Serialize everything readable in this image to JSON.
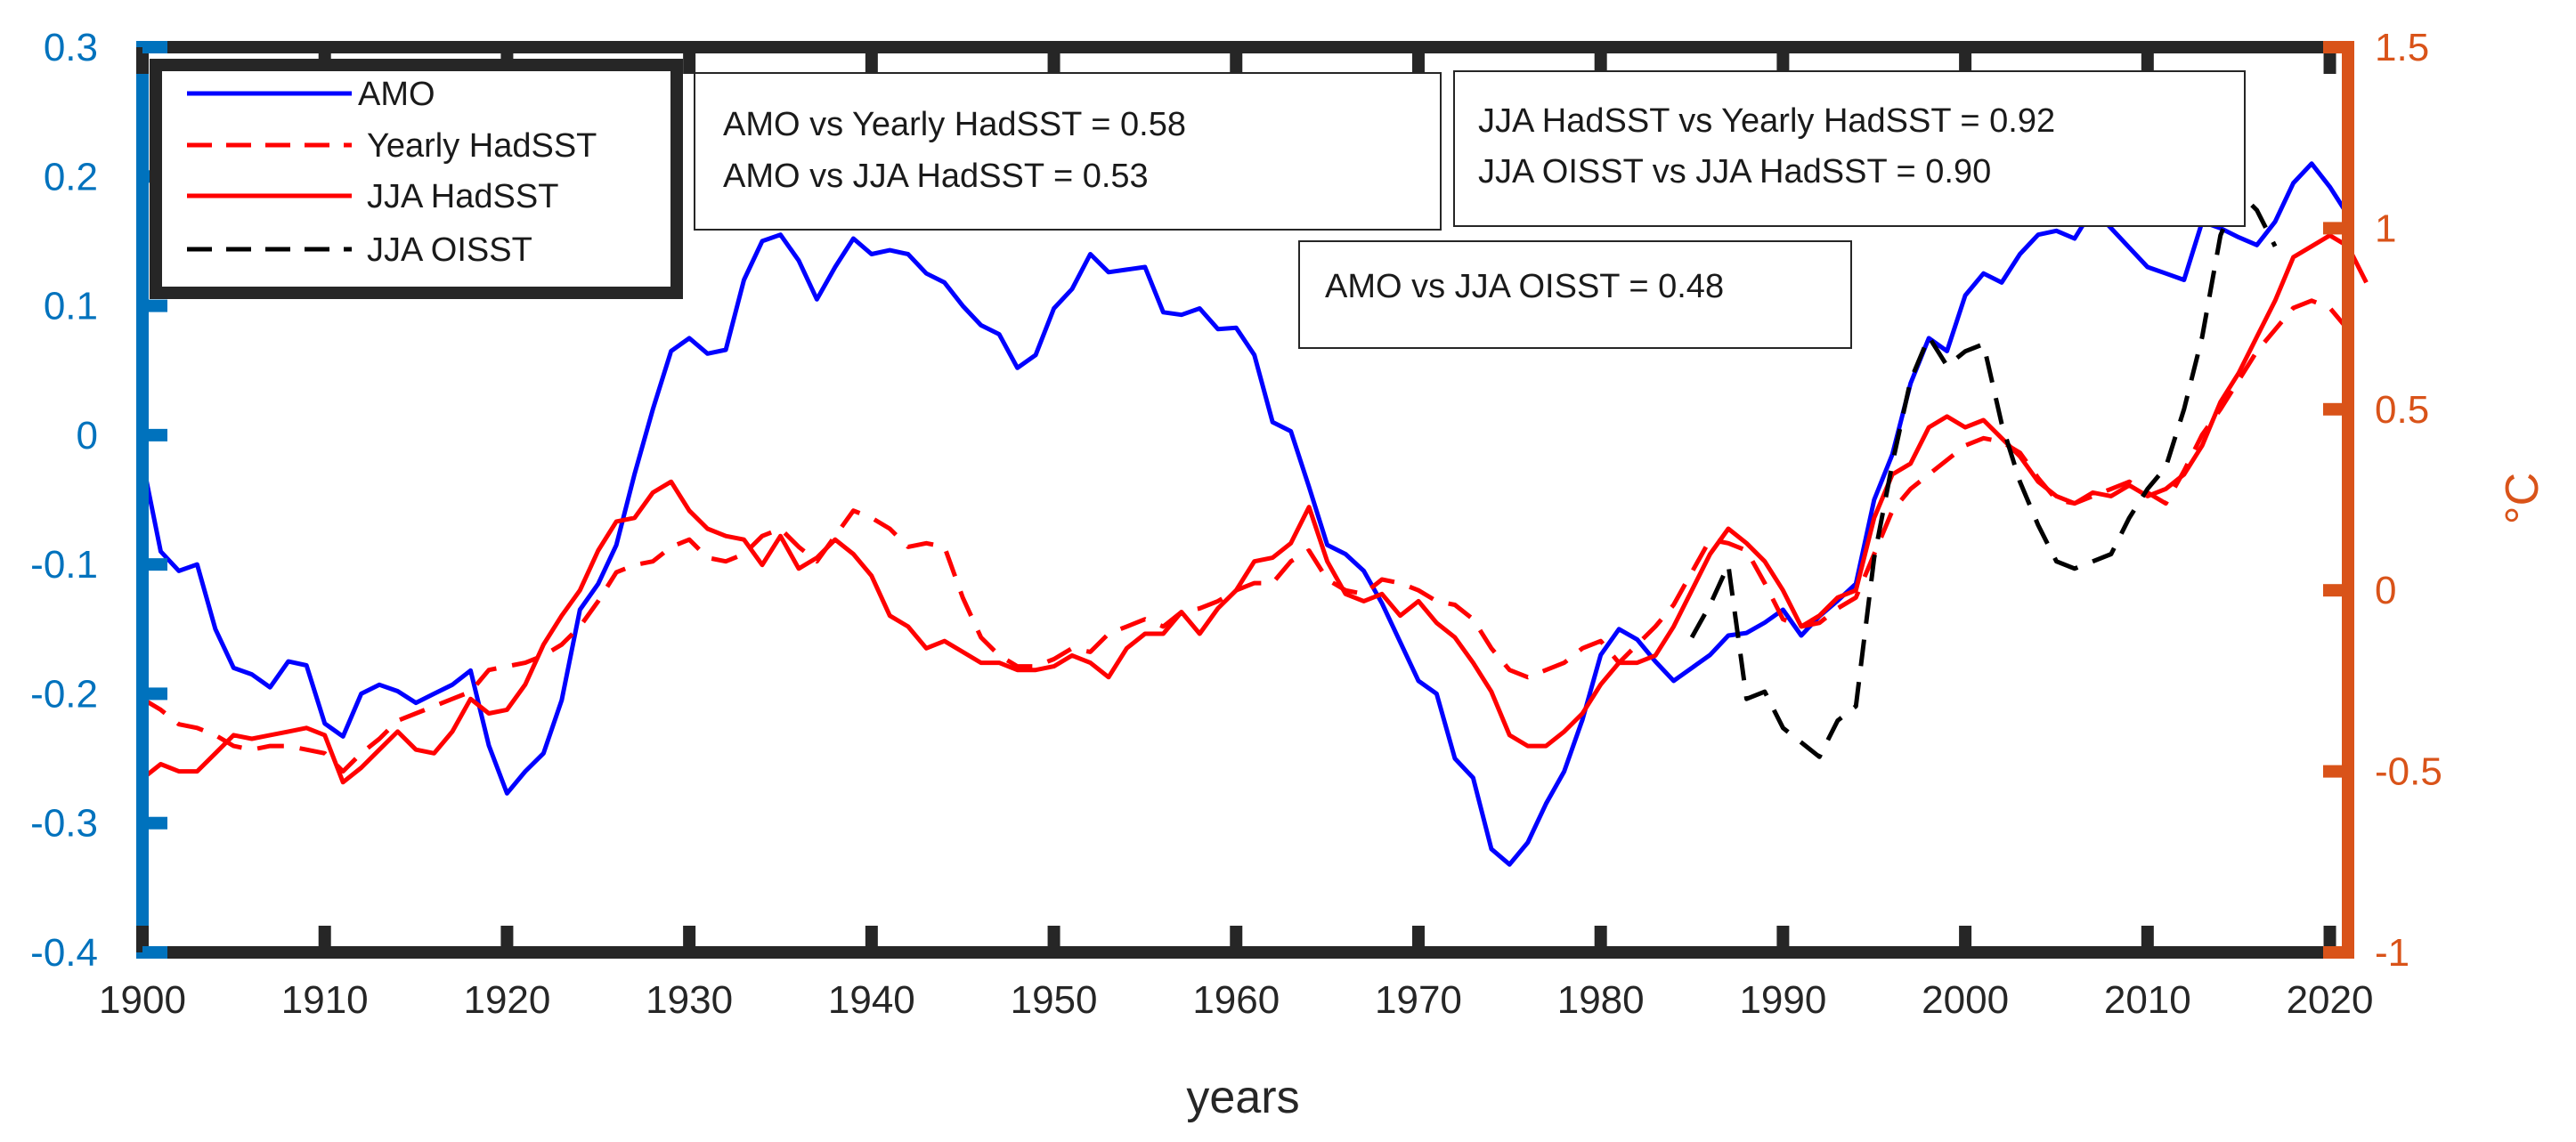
{
  "chart_data": {
    "type": "line",
    "title": "",
    "xlabel": "years",
    "ylabel_left": "",
    "ylabel_right": "°C",
    "xlim": [
      1900,
      2021
    ],
    "ylim_left": [
      -0.4,
      0.3
    ],
    "ylim_right": [
      -1,
      1.5
    ],
    "xticks": [
      "1900",
      "1910",
      "1920",
      "1930",
      "1940",
      "1950",
      "1960",
      "1970",
      "1980",
      "1990",
      "2000",
      "2010",
      "2020"
    ],
    "yticks_left": [
      "-0.4",
      "-0.3",
      "-0.2",
      "-0.1",
      "0",
      "0.1",
      "0.2",
      "0.3"
    ],
    "yticks_right": [
      "-1",
      "-0.5",
      "0",
      "0.5",
      "1",
      "1.5"
    ],
    "colors": {
      "left_axis": "#0072BD",
      "right_axis": "#D95319",
      "amo": "#0000FF",
      "had": "#FF0000",
      "oi": "#000000",
      "frame": "#262626"
    },
    "legend": [
      {
        "label": "AMO",
        "color": "#0000FF",
        "dash": "solid"
      },
      {
        "label": "Yearly HadSST",
        "color": "#FF0000",
        "dash": "dashed"
      },
      {
        "label": "JJA HadSST",
        "color": "#FF0000",
        "dash": "solid"
      },
      {
        "label": "JJA OISST",
        "color": "#000000",
        "dash": "dashed"
      }
    ],
    "annotations": [
      {
        "lines": [
          "AMO vs Yearly HadSST = 0.58",
          "AMO vs JJA HadSST = 0.53"
        ]
      },
      {
        "lines": [
          "JJA HadSST vs Yearly HadSST = 0.92",
          "JJA OISST vs JJA HadSST = 0.90"
        ]
      },
      {
        "lines": [
          "AMO vs JJA OISST = 0.48"
        ]
      }
    ],
    "series": [
      {
        "name": "AMO",
        "axis": "left",
        "color": "#0000FF",
        "dash": "solid",
        "x_start": 1900,
        "values": [
          -0.02,
          -0.09,
          -0.105,
          -0.1,
          -0.15,
          -0.18,
          -0.185,
          -0.195,
          -0.175,
          -0.178,
          -0.223,
          -0.233,
          -0.2,
          -0.193,
          -0.198,
          -0.207,
          -0.2,
          -0.193,
          -0.182,
          -0.24,
          -0.277,
          -0.26,
          -0.246,
          -0.205,
          -0.135,
          -0.115,
          -0.085,
          -0.03,
          0.02,
          0.065,
          0.075,
          0.063,
          0.066,
          0.12,
          0.15,
          0.155,
          0.135,
          0.105,
          0.13,
          0.152,
          0.14,
          0.143,
          0.14,
          0.125,
          0.118,
          0.1,
          0.085,
          0.078,
          0.052,
          0.062,
          0.098,
          0.113,
          0.14,
          0.126,
          0.128,
          0.13,
          0.095,
          0.093,
          0.098,
          0.082,
          0.083,
          0.062,
          0.01,
          0.003,
          -0.04,
          -0.085,
          -0.092,
          -0.105,
          -0.13,
          -0.16,
          -0.19,
          -0.2,
          -0.25,
          -0.265,
          -0.32,
          -0.332,
          -0.315,
          -0.285,
          -0.26,
          -0.22,
          -0.17,
          -0.15,
          -0.158,
          -0.175,
          -0.19,
          -0.18,
          -0.17,
          -0.155,
          -0.153,
          -0.145,
          -0.135,
          -0.155,
          -0.14,
          -0.128,
          -0.115,
          -0.05,
          -0.015,
          0.04,
          0.075,
          0.065,
          0.108,
          0.125,
          0.118,
          0.14,
          0.155,
          0.158,
          0.152,
          0.175,
          0.16,
          0.145,
          0.13,
          0.125,
          0.12,
          0.165,
          0.16,
          0.153,
          0.147,
          0.165,
          0.195,
          0.21,
          0.192,
          0.17
        ]
      },
      {
        "name": "Yearly HadSST",
        "axis": "right",
        "color": "#FF0000",
        "dash": "dashed",
        "x_start": 1900,
        "values": [
          -0.3,
          -0.33,
          -0.37,
          -0.38,
          -0.4,
          -0.43,
          -0.44,
          -0.43,
          -0.43,
          -0.44,
          -0.45,
          -0.5,
          -0.45,
          -0.41,
          -0.36,
          -0.34,
          -0.32,
          -0.3,
          -0.28,
          -0.22,
          -0.21,
          -0.2,
          -0.18,
          -0.15,
          -0.1,
          -0.03,
          0.05,
          0.07,
          0.08,
          0.12,
          0.14,
          0.09,
          0.08,
          0.1,
          0.15,
          0.17,
          0.12,
          0.08,
          0.15,
          0.22,
          0.2,
          0.17,
          0.12,
          0.13,
          0.12,
          -0.02,
          -0.13,
          -0.18,
          -0.21,
          -0.21,
          -0.19,
          -0.16,
          -0.17,
          -0.12,
          -0.1,
          -0.08,
          -0.1,
          -0.06,
          -0.05,
          -0.03,
          0.0,
          0.02,
          0.02,
          0.08,
          0.11,
          0.03,
          0.0,
          -0.01,
          0.03,
          0.02,
          0.0,
          -0.03,
          -0.04,
          -0.08,
          -0.16,
          -0.22,
          -0.24,
          -0.22,
          -0.2,
          -0.16,
          -0.14,
          -0.2,
          -0.15,
          -0.1,
          -0.04,
          0.05,
          0.14,
          0.13,
          0.11,
          0.02,
          -0.08,
          -0.1,
          -0.09,
          -0.05,
          -0.02,
          0.1,
          0.22,
          0.28,
          0.32,
          0.36,
          0.4,
          0.42,
          0.41,
          0.38,
          0.31,
          0.25,
          0.24,
          0.26,
          0.28,
          0.3,
          0.27,
          0.24,
          0.33,
          0.43,
          0.5,
          0.58,
          0.66,
          0.72,
          0.78,
          0.8,
          0.78,
          0.72
        ]
      },
      {
        "name": "JJA HadSST",
        "axis": "right",
        "color": "#FF0000",
        "dash": "solid",
        "x_start": 1900,
        "values": [
          -0.52,
          -0.48,
          -0.5,
          -0.5,
          -0.45,
          -0.4,
          -0.41,
          -0.4,
          -0.39,
          -0.38,
          -0.4,
          -0.53,
          -0.49,
          -0.44,
          -0.39,
          -0.44,
          -0.45,
          -0.39,
          -0.3,
          -0.34,
          -0.33,
          -0.26,
          -0.15,
          -0.07,
          0.0,
          0.11,
          0.19,
          0.2,
          0.27,
          0.3,
          0.22,
          0.17,
          0.15,
          0.14,
          0.07,
          0.15,
          0.06,
          0.09,
          0.14,
          0.1,
          0.04,
          -0.07,
          -0.1,
          -0.16,
          -0.14,
          -0.17,
          -0.2,
          -0.2,
          -0.22,
          -0.22,
          -0.21,
          -0.18,
          -0.2,
          -0.24,
          -0.16,
          -0.12,
          -0.12,
          -0.06,
          -0.12,
          -0.05,
          0.0,
          0.08,
          0.09,
          0.13,
          0.23,
          0.08,
          -0.01,
          -0.03,
          -0.01,
          -0.07,
          -0.03,
          -0.09,
          -0.13,
          -0.2,
          -0.28,
          -0.4,
          -0.43,
          -0.43,
          -0.39,
          -0.34,
          -0.26,
          -0.2,
          -0.2,
          -0.18,
          -0.1,
          0.0,
          0.1,
          0.17,
          0.13,
          0.08,
          0.0,
          -0.1,
          -0.07,
          -0.02,
          0.0,
          0.2,
          0.32,
          0.35,
          0.45,
          0.48,
          0.45,
          0.47,
          0.42,
          0.37,
          0.3,
          0.26,
          0.24,
          0.27,
          0.26,
          0.29,
          0.26,
          0.28,
          0.32,
          0.4,
          0.52,
          0.6,
          0.7,
          0.8,
          0.92,
          0.95,
          0.98,
          0.95,
          0.85
        ]
      },
      {
        "name": "JJA OISST",
        "axis": "right",
        "color": "#000000",
        "dash": "dashed",
        "x_start": 1985,
        "values": [
          -0.13,
          -0.04,
          0.07,
          -0.3,
          -0.28,
          -0.38,
          -0.42,
          -0.46,
          -0.36,
          -0.32,
          0.09,
          0.35,
          0.58,
          0.7,
          0.62,
          0.66,
          0.68,
          0.46,
          0.3,
          0.18,
          0.08,
          0.06,
          0.08,
          0.1,
          0.2,
          0.28,
          0.34,
          0.5,
          0.7,
          0.98,
          1.1,
          1.05,
          0.95
        ]
      }
    ]
  }
}
